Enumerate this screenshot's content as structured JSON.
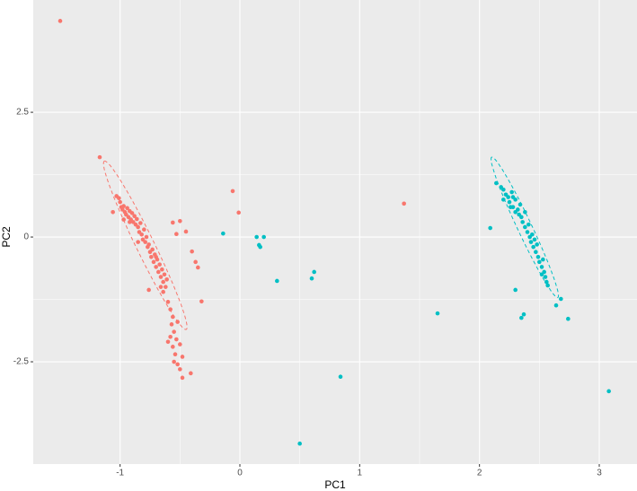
{
  "chart_data": {
    "type": "scatter",
    "x_label": "PC1",
    "y_label": "PC2",
    "xlim": [
      -1.725,
      3.315
    ],
    "ylim": [
      -4.55,
      4.75
    ],
    "xticks": [
      -1,
      0,
      1,
      2,
      3
    ],
    "yticks": [
      {
        "value": -2.5,
        "label": "-2.5"
      },
      0,
      2.5
    ],
    "grid": true,
    "ellipse": true,
    "series": [
      {
        "color": "#F8766D",
        "x": [
          -1.5,
          -1.17,
          -0.06,
          -0.01,
          1.37,
          -0.56,
          -0.5,
          -0.45,
          -0.53,
          -0.4,
          -0.37,
          -0.35,
          -0.32,
          -0.41,
          -0.48,
          -0.76,
          -1.03,
          -1.01,
          -1.0,
          -0.99,
          -0.98,
          -0.97,
          -0.96,
          -0.95,
          -0.94,
          -0.93,
          -0.92,
          -0.91,
          -0.9,
          -0.89,
          -0.88,
          -0.87,
          -0.86,
          -0.85,
          -0.84,
          -0.83,
          -0.82,
          -0.81,
          -0.8,
          -0.79,
          -0.78,
          -0.77,
          -0.76,
          -0.75,
          -0.74,
          -0.73,
          -0.72,
          -0.71,
          -0.7,
          -0.69,
          -0.68,
          -0.67,
          -0.66,
          -0.65,
          -0.64,
          -0.63,
          -0.62,
          -0.64,
          -0.61,
          -0.66,
          -0.7,
          -0.92,
          -0.97,
          -1.06,
          -0.85,
          -0.6,
          -0.58,
          -0.56,
          -0.57,
          -0.55,
          -0.58,
          -0.53,
          -0.56,
          -0.5,
          -0.54,
          -0.48,
          -0.52,
          -0.5,
          -0.55,
          -0.6,
          -0.52
        ],
        "y": [
          4.33,
          1.6,
          0.92,
          0.49,
          0.67,
          0.29,
          0.32,
          0.11,
          0.06,
          -0.29,
          -0.5,
          -0.61,
          -1.29,
          -2.73,
          -2.82,
          -1.06,
          0.82,
          0.78,
          0.7,
          0.6,
          0.55,
          0.62,
          0.5,
          0.45,
          0.58,
          0.4,
          0.52,
          0.35,
          0.48,
          0.3,
          0.42,
          0.25,
          0.36,
          0.2,
          0.1,
          0.28,
          0.05,
          -0.05,
          0.15,
          -0.1,
          0.0,
          -0.2,
          -0.15,
          -0.3,
          -0.4,
          -0.25,
          -0.5,
          -0.35,
          -0.6,
          -0.45,
          -0.7,
          -0.55,
          -0.8,
          -0.65,
          -0.9,
          -0.75,
          -1.0,
          -1.1,
          -0.85,
          -1.0,
          -0.4,
          0.3,
          0.35,
          0.5,
          -0.1,
          -1.3,
          -1.45,
          -1.6,
          -1.75,
          -1.9,
          -2.0,
          -2.05,
          -2.2,
          -2.15,
          -2.35,
          -2.4,
          -2.55,
          -2.65,
          -2.5,
          -2.1,
          -1.7
        ]
      },
      {
        "color": "#00BFC4",
        "x": [
          -0.14,
          0.14,
          0.2,
          0.16,
          0.17,
          0.31,
          0.62,
          0.6,
          0.84,
          0.5,
          1.65,
          3.08,
          2.74,
          2.68,
          2.64,
          2.3,
          2.09,
          2.37,
          2.35,
          2.14,
          2.18,
          2.2,
          2.22,
          2.2,
          2.24,
          2.25,
          2.27,
          2.28,
          2.3,
          2.3,
          2.32,
          2.33,
          2.34,
          2.35,
          2.36,
          2.38,
          2.38,
          2.4,
          2.41,
          2.42,
          2.43,
          2.44,
          2.45,
          2.46,
          2.47,
          2.48,
          2.49,
          2.5,
          2.52,
          2.53,
          2.54,
          2.55,
          2.56,
          2.57,
          2.52,
          2.28,
          2.26
        ],
        "y": [
          0.07,
          0.0,
          0.0,
          -0.16,
          -0.2,
          -0.88,
          -0.7,
          -0.83,
          -2.8,
          -4.14,
          -1.53,
          -3.09,
          -1.64,
          -1.24,
          -1.37,
          -1.06,
          0.18,
          -1.55,
          -1.62,
          1.08,
          1.0,
          0.95,
          0.85,
          0.75,
          0.8,
          0.7,
          0.9,
          0.6,
          0.75,
          0.5,
          0.55,
          0.45,
          0.65,
          0.4,
          0.3,
          0.5,
          0.2,
          0.1,
          0.25,
          0.0,
          -0.1,
          0.05,
          -0.2,
          -0.05,
          -0.3,
          -0.15,
          -0.4,
          -0.5,
          -0.6,
          -0.45,
          -0.7,
          -0.8,
          -0.9,
          -0.97,
          -0.75,
          0.8,
          0.6
        ]
      }
    ]
  }
}
